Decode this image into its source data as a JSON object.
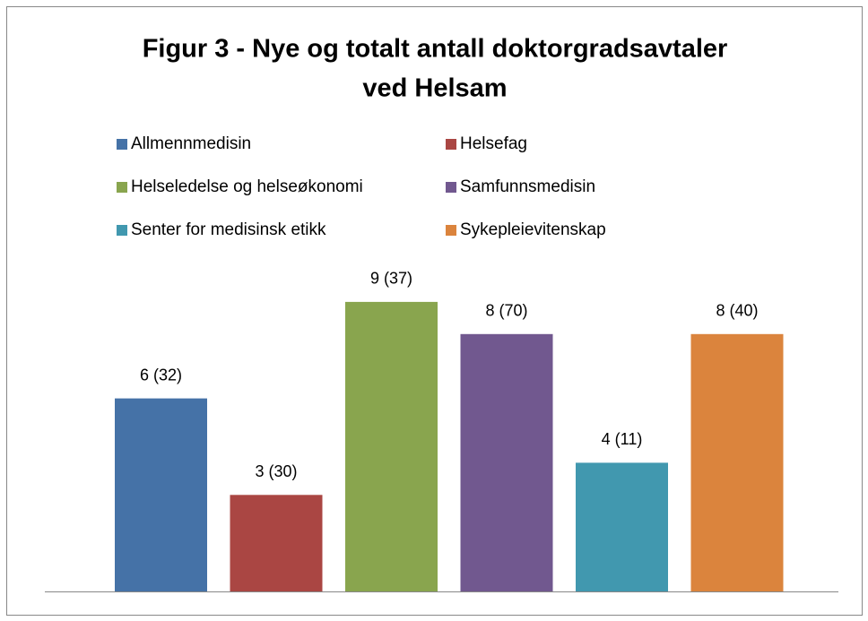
{
  "chart_data": {
    "type": "bar",
    "title": [
      "Figur 3 - Nye og totalt antall doktorgradsavtaler",
      "ved Helsam"
    ],
    "series": [
      {
        "name": "Allmennmedisin",
        "color": "#4572a7",
        "values": [
          6
        ],
        "value_labels": [
          "6 (32)"
        ]
      },
      {
        "name": "Helsefag",
        "color": "#aa4643",
        "values": [
          3
        ],
        "value_labels": [
          "3 (30)"
        ]
      },
      {
        "name": "Helseledelse og helseøkonomi",
        "color": "#89a54e",
        "values": [
          9
        ],
        "value_labels": [
          "9 (37)"
        ]
      },
      {
        "name": "Samfunnsmedisin",
        "color": "#71588f",
        "values": [
          8
        ],
        "value_labels": [
          "8 (70)"
        ]
      },
      {
        "name": "Senter for medisinsk etikk",
        "color": "#4198af",
        "values": [
          4
        ],
        "value_labels": [
          "4 (11)"
        ]
      },
      {
        "name": "Sykepleievitenskap",
        "color": "#db843d",
        "values": [
          8
        ],
        "value_labels": [
          "8 (40)"
        ]
      }
    ],
    "ylim": [
      0,
      10
    ],
    "legend": "top"
  }
}
